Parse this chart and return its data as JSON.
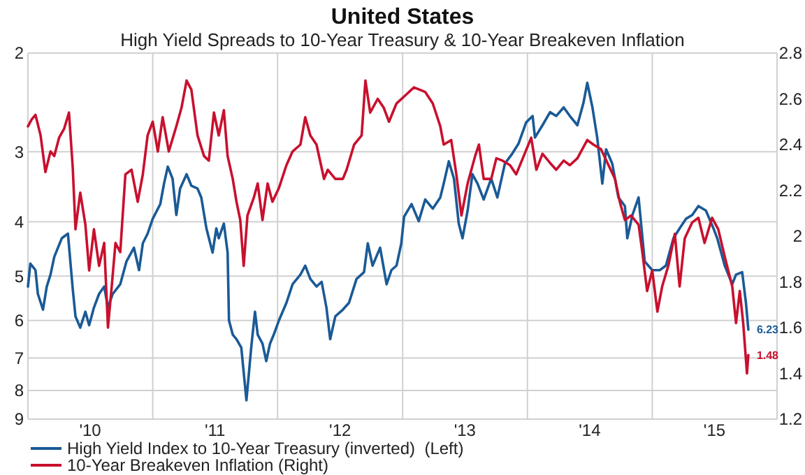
{
  "chart_data": {
    "type": "line",
    "title": "United States",
    "subtitle": "High Yield Spreads to 10-Year Treasury & 10-Year Breakeven Inflation",
    "xlim": [
      "2010-01-01",
      "2016-01-01"
    ],
    "xticks": [
      {
        "value": "2010-01-01",
        "label": null
      },
      {
        "value": "2010-07-02",
        "label": "'10"
      },
      {
        "value": "2011-01-01",
        "label": null
      },
      {
        "value": "2011-07-02",
        "label": "'11"
      },
      {
        "value": "2012-01-01",
        "label": null
      },
      {
        "value": "2012-07-02",
        "label": "'12"
      },
      {
        "value": "2013-01-01",
        "label": null
      },
      {
        "value": "2013-07-02",
        "label": "'13"
      },
      {
        "value": "2014-01-01",
        "label": null
      },
      {
        "value": "2014-07-02",
        "label": "'14"
      },
      {
        "value": "2015-01-01",
        "label": null
      },
      {
        "value": "2015-07-02",
        "label": "'15"
      },
      {
        "value": "2016-01-01",
        "label": null
      }
    ],
    "ylim": [
      9,
      2
    ],
    "yticks": [
      2,
      3,
      4,
      5,
      6,
      7,
      8,
      9
    ],
    "log": "y",
    "y2lim": [
      1.2,
      2.8
    ],
    "y2ticks": [
      1.2,
      1.4,
      1.6,
      1.8,
      2,
      2.2,
      2.4,
      2.6,
      2.8
    ],
    "grid": true,
    "legend": "bottom left",
    "line_style": "solid",
    "series": [
      {
        "name": "High Yield Index to 10-Year Treasury (inverted)  (Left)",
        "color": "#1a5a96",
        "axis": "y",
        "x": [
          "2010-01-01",
          "2010-01-08",
          "2010-01-23",
          "2010-01-30",
          "2010-02-14",
          "2010-02-25",
          "2010-03-08",
          "2010-03-19",
          "2010-04-10",
          "2010-04-28",
          "2010-05-05",
          "2010-05-12",
          "2010-05-20",
          "2010-06-03",
          "2010-06-18",
          "2010-06-29",
          "2010-07-13",
          "2010-07-28",
          "2010-08-12",
          "2010-08-23",
          "2010-09-06",
          "2010-09-28",
          "2010-10-16",
          "2010-11-07",
          "2010-11-22",
          "2010-12-03",
          "2010-12-17",
          "2011-01-01",
          "2011-01-23",
          "2011-02-03",
          "2011-02-14",
          "2011-02-28",
          "2011-03-11",
          "2011-03-22",
          "2011-04-10",
          "2011-04-24",
          "2011-05-12",
          "2011-05-23",
          "2011-06-07",
          "2011-06-25",
          "2011-07-06",
          "2011-07-13",
          "2011-07-28",
          "2011-08-08",
          "2011-08-12",
          "2011-08-23",
          "2011-09-03",
          "2011-09-17",
          "2011-10-02",
          "2011-10-16",
          "2011-10-27",
          "2011-11-04",
          "2011-11-18",
          "2011-11-29",
          "2011-12-10",
          "2011-12-21",
          "2012-01-05",
          "2012-01-27",
          "2012-02-14",
          "2012-03-08",
          "2012-03-22",
          "2012-04-06",
          "2012-04-24",
          "2012-05-09",
          "2012-05-23",
          "2012-06-03",
          "2012-06-18",
          "2012-07-10",
          "2012-07-28",
          "2012-08-19",
          "2012-09-10",
          "2012-09-21",
          "2012-10-05",
          "2012-10-27",
          "2012-11-15",
          "2012-11-29",
          "2012-12-14",
          "2012-12-28",
          "2013-01-05",
          "2013-01-27",
          "2013-02-17",
          "2013-03-08",
          "2013-03-30",
          "2013-04-21",
          "2013-05-01",
          "2013-05-16",
          "2013-05-31",
          "2013-06-14",
          "2013-06-25",
          "2013-07-10",
          "2013-07-24",
          "2013-08-08",
          "2013-08-26",
          "2013-09-17",
          "2013-10-05",
          "2013-10-27",
          "2013-11-18",
          "2013-12-06",
          "2013-12-28",
          "2014-01-16",
          "2014-01-23",
          "2014-02-14",
          "2014-03-08",
          "2014-03-26",
          "2014-04-17",
          "2014-05-05",
          "2014-05-27",
          "2014-06-14",
          "2014-06-25",
          "2014-07-10",
          "2014-07-24",
          "2014-08-08",
          "2014-08-19",
          "2014-09-06",
          "2014-09-24",
          "2014-10-13",
          "2014-10-20",
          "2014-11-04",
          "2014-11-22",
          "2014-12-10",
          "2015-01-01",
          "2015-01-23",
          "2015-02-10",
          "2015-03-04",
          "2015-03-22",
          "2015-04-10",
          "2015-04-28",
          "2015-05-16",
          "2015-06-07",
          "2015-06-29",
          "2015-07-10",
          "2015-08-01",
          "2015-08-23",
          "2015-09-03",
          "2015-09-21",
          "2015-10-02",
          "2015-10-09"
        ],
        "values": [
          5.22,
          4.75,
          4.88,
          5.38,
          5.74,
          5.22,
          4.97,
          4.62,
          4.28,
          4.2,
          4.71,
          5.27,
          5.9,
          6.18,
          5.79,
          6.12,
          5.69,
          5.38,
          5.22,
          5.69,
          5.38,
          5.17,
          4.71,
          4.45,
          4.88,
          4.37,
          4.2,
          3.95,
          3.72,
          3.42,
          3.19,
          3.35,
          3.89,
          3.49,
          3.29,
          3.45,
          3.49,
          3.62,
          4.11,
          4.54,
          4.11,
          4.28,
          4.03,
          4.54,
          6.0,
          6.36,
          6.48,
          6.71,
          8.33,
          6.71,
          5.79,
          6.36,
          6.6,
          7.09,
          6.6,
          6.36,
          6.0,
          5.58,
          5.17,
          4.97,
          4.79,
          5.06,
          5.22,
          5.12,
          5.69,
          6.48,
          5.9,
          5.74,
          5.58,
          5.06,
          4.92,
          4.37,
          4.79,
          4.45,
          5.17,
          4.88,
          4.79,
          4.37,
          3.92,
          3.72,
          3.99,
          3.65,
          3.79,
          3.62,
          3.42,
          3.12,
          3.35,
          4.03,
          4.28,
          3.82,
          3.29,
          3.42,
          3.65,
          3.35,
          3.62,
          3.15,
          3.02,
          2.9,
          2.66,
          2.59,
          2.83,
          2.69,
          2.55,
          2.59,
          2.5,
          2.59,
          2.69,
          2.45,
          2.26,
          2.5,
          2.83,
          3.42,
          2.97,
          3.15,
          3.62,
          3.75,
          4.28,
          3.89,
          3.62,
          4.71,
          4.88,
          4.88,
          4.79,
          4.28,
          4.11,
          3.95,
          3.89,
          3.75,
          3.82,
          4.11,
          4.28,
          4.79,
          5.17,
          4.97,
          4.92,
          5.58,
          6.23
        ],
        "value_labels": [
          null,
          null,
          null,
          null,
          null,
          null,
          null,
          null,
          null,
          null,
          null,
          null,
          null,
          null,
          null,
          null,
          null,
          null,
          null,
          null,
          null,
          null,
          null,
          null,
          null,
          null,
          null,
          null,
          null,
          null,
          null,
          null,
          null,
          null,
          null,
          null,
          null,
          null,
          null,
          null,
          null,
          null,
          null,
          null,
          null,
          null,
          null,
          null,
          null,
          null,
          null,
          null,
          null,
          null,
          null,
          null,
          null,
          null,
          null,
          null,
          null,
          null,
          null,
          null,
          null,
          null,
          null,
          null,
          null,
          null,
          null,
          null,
          null,
          null,
          null,
          null,
          null,
          null,
          null,
          null,
          null,
          null,
          null,
          null,
          null,
          null,
          null,
          null,
          null,
          null,
          null,
          null,
          null,
          null,
          null,
          null,
          null,
          null,
          null,
          null,
          null,
          null,
          null,
          null,
          null,
          null,
          null,
          null,
          null,
          null,
          null,
          null,
          null,
          null,
          null,
          null,
          null,
          null,
          null,
          null,
          null,
          null,
          null,
          null,
          null,
          null,
          null,
          null,
          null,
          null,
          null,
          null,
          null,
          null,
          null,
          null,
          "6.23"
        ]
      },
      {
        "name": "10-Year Breakeven Inflation (Right)",
        "color": "#c8102e",
        "axis": "y2",
        "x": [
          "2010-01-01",
          "2010-01-12",
          "2010-01-23",
          "2010-02-07",
          "2010-02-21",
          "2010-03-08",
          "2010-03-19",
          "2010-04-02",
          "2010-04-17",
          "2010-05-01",
          "2010-05-12",
          "2010-05-20",
          "2010-06-03",
          "2010-06-18",
          "2010-06-29",
          "2010-07-13",
          "2010-07-28",
          "2010-08-12",
          "2010-08-23",
          "2010-09-03",
          "2010-09-14",
          "2010-09-28",
          "2010-10-13",
          "2010-10-31",
          "2010-11-18",
          "2010-12-03",
          "2010-12-17",
          "2011-01-01",
          "2011-01-16",
          "2011-01-30",
          "2011-02-17",
          "2011-03-11",
          "2011-03-26",
          "2011-04-10",
          "2011-04-24",
          "2011-05-12",
          "2011-05-31",
          "2011-06-14",
          "2011-06-29",
          "2011-07-13",
          "2011-07-28",
          "2011-08-08",
          "2011-08-23",
          "2011-09-03",
          "2011-09-14",
          "2011-09-24",
          "2011-10-05",
          "2011-10-24",
          "2011-11-04",
          "2011-11-18",
          "2011-12-03",
          "2011-12-17",
          "2012-01-05",
          "2012-01-27",
          "2012-02-14",
          "2012-03-08",
          "2012-03-22",
          "2012-04-06",
          "2012-04-24",
          "2012-05-16",
          "2012-05-27",
          "2012-06-18",
          "2012-07-10",
          "2012-07-21",
          "2012-08-12",
          "2012-09-03",
          "2012-09-14",
          "2012-09-28",
          "2012-10-20",
          "2012-11-07",
          "2012-11-22",
          "2012-12-14",
          "2013-01-05",
          "2013-02-03",
          "2013-03-08",
          "2013-03-30",
          "2013-04-21",
          "2013-05-01",
          "2013-05-23",
          "2013-06-07",
          "2013-06-22",
          "2013-07-10",
          "2013-08-01",
          "2013-08-12",
          "2013-08-26",
          "2013-09-17",
          "2013-10-02",
          "2013-10-20",
          "2013-11-11",
          "2013-11-29",
          "2013-12-21",
          "2014-01-12",
          "2014-01-27",
          "2014-02-14",
          "2014-03-08",
          "2014-03-26",
          "2014-04-17",
          "2014-05-05",
          "2014-05-27",
          "2014-06-25",
          "2014-07-13",
          "2014-08-04",
          "2014-08-23",
          "2014-09-14",
          "2014-09-28",
          "2014-10-13",
          "2014-10-31",
          "2014-11-22",
          "2014-12-03",
          "2014-12-17",
          "2015-01-01",
          "2015-01-16",
          "2015-01-30",
          "2015-02-17",
          "2015-03-08",
          "2015-03-22",
          "2015-04-06",
          "2015-04-28",
          "2015-05-16",
          "2015-06-03",
          "2015-06-25",
          "2015-07-13",
          "2015-08-01",
          "2015-08-23",
          "2015-09-03",
          "2015-09-14",
          "2015-09-24",
          "2015-10-05",
          "2015-10-09"
        ],
        "values": [
          2.48,
          2.51,
          2.53,
          2.44,
          2.28,
          2.37,
          2.35,
          2.43,
          2.47,
          2.54,
          2.3,
          2.03,
          2.19,
          2.05,
          1.85,
          2.03,
          1.87,
          1.97,
          1.6,
          1.78,
          1.97,
          1.93,
          2.27,
          2.29,
          2.15,
          2.27,
          2.44,
          2.5,
          2.37,
          2.52,
          2.37,
          2.48,
          2.56,
          2.68,
          2.64,
          2.44,
          2.35,
          2.33,
          2.54,
          2.44,
          2.55,
          2.35,
          2.25,
          2.15,
          2.07,
          1.87,
          2.09,
          2.17,
          2.23,
          2.07,
          2.23,
          2.15,
          2.21,
          2.31,
          2.37,
          2.4,
          2.52,
          2.44,
          2.4,
          2.25,
          2.29,
          2.25,
          2.25,
          2.29,
          2.4,
          2.44,
          2.68,
          2.54,
          2.6,
          2.56,
          2.5,
          2.58,
          2.61,
          2.65,
          2.63,
          2.58,
          2.48,
          2.4,
          2.42,
          2.27,
          2.09,
          2.23,
          2.35,
          2.4,
          2.25,
          2.25,
          2.34,
          2.33,
          2.31,
          2.27,
          2.35,
          2.43,
          2.29,
          2.36,
          2.32,
          2.29,
          2.33,
          2.31,
          2.34,
          2.42,
          2.4,
          2.38,
          2.32,
          2.25,
          2.15,
          2.07,
          2.09,
          2.05,
          1.93,
          1.76,
          1.85,
          1.67,
          1.78,
          1.87,
          2.01,
          1.78,
          1.99,
          2.06,
          2.08,
          1.97,
          2.08,
          2.03,
          1.91,
          1.78,
          1.62,
          1.76,
          1.62,
          1.4,
          1.48
        ],
        "value_labels": [
          null,
          null,
          null,
          null,
          null,
          null,
          null,
          null,
          null,
          null,
          null,
          null,
          null,
          null,
          null,
          null,
          null,
          null,
          null,
          null,
          null,
          null,
          null,
          null,
          null,
          null,
          null,
          null,
          null,
          null,
          null,
          null,
          null,
          null,
          null,
          null,
          null,
          null,
          null,
          null,
          null,
          null,
          null,
          null,
          null,
          null,
          null,
          null,
          null,
          null,
          null,
          null,
          null,
          null,
          null,
          null,
          null,
          null,
          null,
          null,
          null,
          null,
          null,
          null,
          null,
          null,
          null,
          null,
          null,
          null,
          null,
          null,
          null,
          null,
          null,
          null,
          null,
          null,
          null,
          null,
          null,
          null,
          null,
          null,
          null,
          null,
          null,
          null,
          null,
          null,
          null,
          null,
          null,
          null,
          null,
          null,
          null,
          null,
          null,
          null,
          null,
          null,
          null,
          null,
          null,
          null,
          null,
          null,
          null,
          null,
          null,
          null,
          null,
          null,
          null,
          null,
          null,
          null,
          null,
          null,
          null,
          null,
          null,
          null,
          null,
          null,
          null,
          null,
          "1.48"
        ]
      }
    ]
  }
}
